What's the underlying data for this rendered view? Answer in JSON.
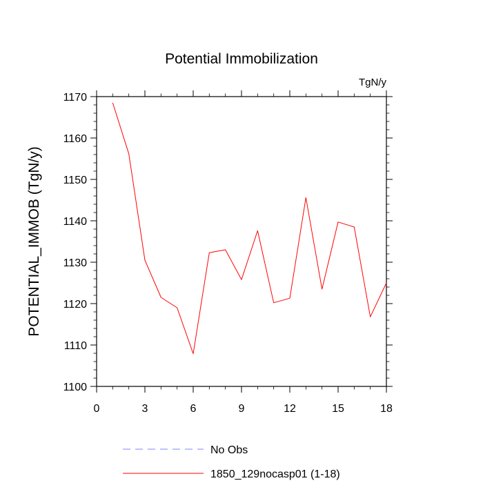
{
  "chart_data": {
    "type": "line",
    "title": "Potential Immobilization",
    "units_label": "TgN/y",
    "ylabel": "POTENTIAL_IMMOB  (TgN/y)",
    "xlabel": "",
    "xlim": [
      0,
      18
    ],
    "ylim": [
      1100,
      1170
    ],
    "x_ticks": [
      0,
      3,
      6,
      9,
      12,
      15,
      18
    ],
    "y_ticks": [
      1100,
      1110,
      1120,
      1130,
      1140,
      1150,
      1160,
      1170
    ],
    "grid": false,
    "legend_position": "bottom",
    "series": [
      {
        "name": "1850_129nocasp01 (1-18)",
        "color": "#ff0000",
        "style": "solid",
        "x": [
          1,
          2,
          3,
          4,
          5,
          6,
          7,
          8,
          9,
          10,
          11,
          12,
          13,
          14,
          15,
          16,
          17,
          18
        ],
        "values": [
          1168.5,
          1156.2,
          1130.5,
          1121.5,
          1119.0,
          1107.9,
          1132.3,
          1133.0,
          1125.8,
          1137.6,
          1120.2,
          1121.3,
          1145.6,
          1123.5,
          1139.7,
          1138.5,
          1116.8,
          1125.0
        ]
      }
    ],
    "legend": [
      {
        "label": "No Obs",
        "color": "#8080ff",
        "style": "dashed"
      },
      {
        "label": "1850_129nocasp01 (1-18)",
        "color": "#ff0000",
        "style": "solid"
      }
    ]
  }
}
